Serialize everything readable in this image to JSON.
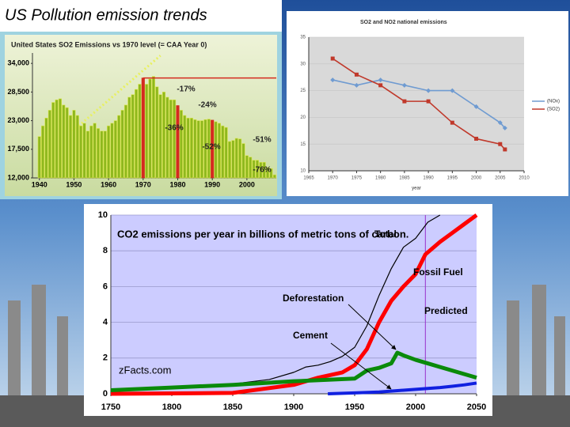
{
  "slide_title": "US Pollution emission trends",
  "chart_data": [
    {
      "type": "bar",
      "title": "United States SO2 Emissions vs 1970 level (= CAA Year 0)",
      "x": [
        1940,
        1941,
        1942,
        1943,
        1944,
        1945,
        1946,
        1947,
        1948,
        1949,
        1950,
        1951,
        1952,
        1953,
        1954,
        1955,
        1956,
        1957,
        1958,
        1959,
        1960,
        1961,
        1962,
        1963,
        1964,
        1965,
        1966,
        1967,
        1968,
        1969,
        1970,
        1971,
        1972,
        1973,
        1974,
        1975,
        1976,
        1977,
        1978,
        1979,
        1980,
        1981,
        1982,
        1983,
        1984,
        1985,
        1986,
        1987,
        1988,
        1989,
        1990,
        1991,
        1992,
        1993,
        1994,
        1995,
        1996,
        1997,
        1998,
        1999,
        2000,
        2001,
        2002,
        2003,
        2004,
        2005,
        2006,
        2007,
        2008
      ],
      "values": [
        19950,
        22000,
        23500,
        25000,
        26500,
        27000,
        27200,
        26000,
        25500,
        24000,
        25000,
        24000,
        22000,
        22500,
        21000,
        22000,
        22500,
        21500,
        21000,
        21000,
        22000,
        22500,
        23000,
        24000,
        25000,
        26000,
        27500,
        28000,
        29000,
        30000,
        31200,
        30000,
        31000,
        31500,
        29500,
        28000,
        28500,
        27500,
        27000,
        27000,
        25900,
        25000,
        24000,
        23500,
        23500,
        23200,
        23000,
        23000,
        23200,
        23300,
        23100,
        22800,
        22500,
        22000,
        21700,
        19000,
        19200,
        19600,
        19500,
        18600,
        16300,
        16000,
        15400,
        15400,
        15000,
        15000,
        14000,
        13800,
        12600
      ],
      "color": "#8fb81e",
      "highlight_x": [
        1970,
        1980,
        1990
      ],
      "highlight_color": "#d42a1e",
      "reference_line": 31200,
      "annotations": [
        "-17%",
        "-24%",
        "-36%",
        "-52%",
        "-51%",
        "-76%"
      ],
      "xlim": [
        1938,
        2008.5
      ],
      "xticks": [
        1940,
        1950,
        1960,
        1970,
        1980,
        1990,
        2000
      ],
      "ylim": [
        12000,
        36000
      ],
      "yticks": [
        {
          "value": 12000,
          "label": "12,000"
        },
        {
          "value": 17500,
          "label": "17,500"
        },
        {
          "value": 23000,
          "label": "23,000"
        },
        {
          "value": 28500,
          "label": "28,500"
        },
        {
          "value": 34000,
          "label": "34,000"
        }
      ]
    },
    {
      "type": "line",
      "title": "SO2 and NO2 national emissions",
      "x_label": "year",
      "x": [
        1970,
        1975,
        1980,
        1985,
        1990,
        1995,
        2000,
        2005,
        2006
      ],
      "series": [
        {
          "name": "(NOx)",
          "color": "#6f9bd1",
          "marker": "diamond",
          "values": [
            27,
            26,
            27,
            26,
            25,
            25,
            22,
            19,
            18
          ]
        },
        {
          "name": "(SO2)",
          "color": "#c0392b",
          "marker": "square",
          "values": [
            31,
            28,
            26,
            23,
            23,
            19,
            16,
            15,
            14
          ]
        }
      ],
      "xlim": [
        1965,
        2010
      ],
      "xticks": [
        1965,
        1970,
        1975,
        1980,
        1985,
        1990,
        1995,
        2000,
        2005,
        2010
      ],
      "ylim": [
        10,
        35
      ],
      "yticks": [
        10,
        15,
        20,
        25,
        30,
        35
      ],
      "legend": "right"
    },
    {
      "type": "line",
      "title": "CO2 emissions per year in billions of metric tons of carbon.",
      "source": "zFacts.com",
      "predicted_label": "Predicted",
      "predicted_x": 2008,
      "series": [
        {
          "name": "Total",
          "color": "#000000",
          "width": 1.2,
          "x": [
            1750,
            1800,
            1850,
            1880,
            1900,
            1910,
            1920,
            1930,
            1940,
            1950,
            1960,
            1970,
            1980,
            1990,
            2000,
            2010,
            2020
          ],
          "values": [
            0.2,
            0.3,
            0.55,
            0.8,
            1.2,
            1.5,
            1.6,
            1.8,
            2.1,
            2.6,
            3.8,
            5.5,
            7.0,
            8.2,
            8.7,
            9.6,
            10
          ]
        },
        {
          "name": "Fossil Fuel",
          "color": "#ff0000",
          "width": 5,
          "x": [
            1750,
            1800,
            1850,
            1900,
            1920,
            1940,
            1950,
            1960,
            1970,
            1980,
            1990,
            2000,
            2008,
            2020,
            2030,
            2040,
            2050
          ],
          "values": [
            0,
            0.02,
            0.05,
            0.5,
            0.9,
            1.2,
            1.6,
            2.5,
            4.0,
            5.2,
            6.0,
            6.7,
            7.8,
            8.5,
            9.0,
            9.5,
            10
          ]
        },
        {
          "name": "Deforestation",
          "color": "#0a8a0a",
          "width": 5,
          "x": [
            1750,
            1800,
            1850,
            1900,
            1950,
            1960,
            1970,
            1980,
            1985,
            1990,
            2000,
            2010,
            2020,
            2030,
            2040,
            2050
          ],
          "values": [
            0.2,
            0.35,
            0.5,
            0.7,
            0.85,
            1.3,
            1.45,
            1.7,
            2.3,
            2.15,
            1.9,
            1.7,
            1.5,
            1.3,
            1.1,
            0.9
          ]
        },
        {
          "name": "Cement",
          "color": "#1020e0",
          "width": 4,
          "x": [
            1928,
            1950,
            1970,
            1990,
            2000,
            2010,
            2020,
            2030,
            2040,
            2050
          ],
          "values": [
            0,
            0.05,
            0.1,
            0.2,
            0.25,
            0.3,
            0.35,
            0.42,
            0.5,
            0.6
          ]
        }
      ],
      "xlim": [
        1750,
        2050
      ],
      "xticks": [
        1750,
        1800,
        1850,
        1900,
        1950,
        2000,
        2050
      ],
      "ylim": [
        0,
        10
      ],
      "yticks": [
        0,
        2,
        4,
        6,
        8,
        10
      ],
      "grid": true
    }
  ]
}
